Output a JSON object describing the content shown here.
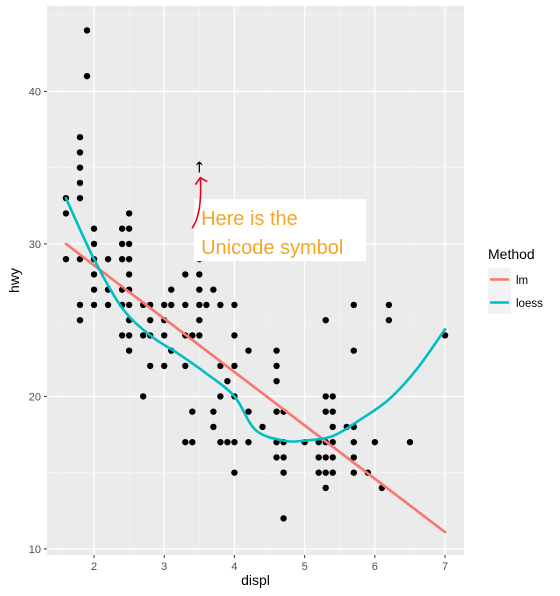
{
  "chart_data": {
    "type": "scatter",
    "xlabel": "displ",
    "ylabel": "hwy",
    "xlim": [
      1.33,
      7.27
    ],
    "ylim": [
      9.6,
      45.6
    ],
    "x_ticks": [
      2,
      3,
      4,
      5,
      6,
      7
    ],
    "y_ticks": [
      10,
      20,
      30,
      40
    ],
    "grid": true,
    "legend": {
      "title": "Method",
      "position": "right",
      "entries": [
        {
          "label": "lm",
          "color": "#F8766D"
        },
        {
          "label": "loess",
          "color": "#00BFC4"
        }
      ]
    },
    "points": [
      [
        1.6,
        29
      ],
      [
        1.6,
        32
      ],
      [
        1.6,
        33
      ],
      [
        1.8,
        25
      ],
      [
        1.8,
        26
      ],
      [
        1.8,
        29
      ],
      [
        1.8,
        33
      ],
      [
        1.8,
        34
      ],
      [
        1.8,
        35
      ],
      [
        1.8,
        36
      ],
      [
        1.8,
        37
      ],
      [
        1.9,
        41
      ],
      [
        1.9,
        44
      ],
      [
        2.0,
        26
      ],
      [
        2.0,
        27
      ],
      [
        2.0,
        28
      ],
      [
        2.0,
        29
      ],
      [
        2.0,
        30
      ],
      [
        2.0,
        31
      ],
      [
        2.2,
        26
      ],
      [
        2.2,
        27
      ],
      [
        2.2,
        29
      ],
      [
        2.4,
        24
      ],
      [
        2.4,
        26
      ],
      [
        2.4,
        27
      ],
      [
        2.4,
        29
      ],
      [
        2.4,
        30
      ],
      [
        2.4,
        31
      ],
      [
        2.5,
        23
      ],
      [
        2.5,
        24
      ],
      [
        2.5,
        25
      ],
      [
        2.5,
        26
      ],
      [
        2.5,
        27
      ],
      [
        2.5,
        28
      ],
      [
        2.5,
        29
      ],
      [
        2.5,
        30
      ],
      [
        2.5,
        31
      ],
      [
        2.5,
        32
      ],
      [
        2.7,
        20
      ],
      [
        2.7,
        24
      ],
      [
        2.7,
        26
      ],
      [
        2.8,
        22
      ],
      [
        2.8,
        24
      ],
      [
        2.8,
        25
      ],
      [
        2.8,
        26
      ],
      [
        3.0,
        22
      ],
      [
        3.0,
        24
      ],
      [
        3.0,
        25
      ],
      [
        3.0,
        26
      ],
      [
        3.1,
        23
      ],
      [
        3.1,
        26
      ],
      [
        3.1,
        27
      ],
      [
        3.3,
        17
      ],
      [
        3.3,
        22
      ],
      [
        3.3,
        24
      ],
      [
        3.3,
        26
      ],
      [
        3.3,
        28
      ],
      [
        3.4,
        17
      ],
      [
        3.4,
        19
      ],
      [
        3.4,
        24
      ],
      [
        3.5,
        24
      ],
      [
        3.5,
        25
      ],
      [
        3.5,
        26
      ],
      [
        3.5,
        27
      ],
      [
        3.5,
        28
      ],
      [
        3.5,
        29
      ],
      [
        3.6,
        26
      ],
      [
        3.7,
        18
      ],
      [
        3.7,
        19
      ],
      [
        3.7,
        27
      ],
      [
        3.8,
        17
      ],
      [
        3.8,
        20
      ],
      [
        3.8,
        22
      ],
      [
        3.8,
        26
      ],
      [
        3.9,
        17
      ],
      [
        3.9,
        21
      ],
      [
        4.0,
        15
      ],
      [
        4.0,
        17
      ],
      [
        4.0,
        20
      ],
      [
        4.0,
        22
      ],
      [
        4.0,
        24
      ],
      [
        4.0,
        26
      ],
      [
        4.2,
        17
      ],
      [
        4.2,
        19
      ],
      [
        4.2,
        23
      ],
      [
        4.4,
        18
      ],
      [
        4.6,
        16
      ],
      [
        4.6,
        17
      ],
      [
        4.6,
        19
      ],
      [
        4.6,
        21
      ],
      [
        4.6,
        22
      ],
      [
        4.6,
        23
      ],
      [
        4.7,
        12
      ],
      [
        4.7,
        15
      ],
      [
        4.7,
        16
      ],
      [
        4.7,
        17
      ],
      [
        4.7,
        19
      ],
      [
        5.0,
        17
      ],
      [
        5.2,
        15
      ],
      [
        5.2,
        16
      ],
      [
        5.2,
        17
      ],
      [
        5.3,
        14
      ],
      [
        5.3,
        15
      ],
      [
        5.3,
        16
      ],
      [
        5.3,
        17
      ],
      [
        5.3,
        19
      ],
      [
        5.3,
        20
      ],
      [
        5.3,
        25
      ],
      [
        5.4,
        15
      ],
      [
        5.4,
        16
      ],
      [
        5.4,
        17
      ],
      [
        5.4,
        18
      ],
      [
        5.4,
        19
      ],
      [
        5.4,
        20
      ],
      [
        5.6,
        18
      ],
      [
        5.7,
        15
      ],
      [
        5.7,
        16
      ],
      [
        5.7,
        17
      ],
      [
        5.7,
        18
      ],
      [
        5.7,
        23
      ],
      [
        5.7,
        26
      ],
      [
        5.9,
        15
      ],
      [
        6.0,
        17
      ],
      [
        6.1,
        14
      ],
      [
        6.2,
        25
      ],
      [
        6.2,
        26
      ],
      [
        6.5,
        17
      ],
      [
        7.0,
        24
      ]
    ],
    "series": [
      {
        "name": "lm",
        "color": "#F8766D",
        "x": [
          1.6,
          7.0
        ],
        "y": [
          30.0,
          11.1
        ]
      },
      {
        "name": "loess",
        "color": "#00BFC4",
        "x": [
          1.6,
          2.0,
          2.4,
          2.8,
          3.2,
          3.6,
          4.0,
          4.3,
          4.7,
          5.0,
          5.4,
          5.8,
          6.2,
          6.6,
          7.0
        ],
        "y": [
          33.0,
          29.0,
          25.8,
          24.0,
          22.8,
          21.5,
          20.0,
          17.8,
          17.1,
          17.1,
          17.4,
          18.5,
          19.8,
          21.8,
          24.4
        ]
      }
    ],
    "annotations": [
      {
        "text": "Here is the Unicode symbol",
        "lines": [
          "Here is the",
          "Unicode symbol"
        ],
        "color": "#F5A623",
        "at": [
          4.65,
          30.9
        ]
      },
      {
        "text": "↑",
        "at": [
          3.5,
          35
        ]
      }
    ]
  }
}
